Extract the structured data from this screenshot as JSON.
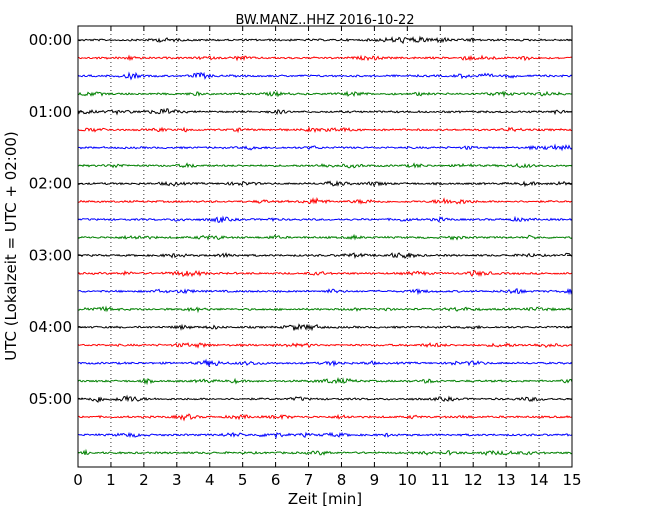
{
  "chart_data": {
    "type": "line",
    "title": "BW.MANZ..HHZ 2016-10-22",
    "xlabel": "Zeit  [min]",
    "ylabel": "UTC (Lokalzeit = UTC + 02:00)",
    "xlim": [
      0,
      15
    ],
    "x_ticks": [
      "0",
      "1",
      "2",
      "3",
      "4",
      "5",
      "6",
      "7",
      "8",
      "9",
      "10",
      "11",
      "12",
      "13",
      "14",
      "15"
    ],
    "y_ticks": [
      "00:00",
      "01:00",
      "02:00",
      "03:00",
      "04:00",
      "05:00"
    ],
    "grid": "vertical dotted lines at each minute",
    "trace_interval_minutes": 15,
    "trace_start_times": [
      "00:00",
      "00:15",
      "00:30",
      "00:45",
      "01:00",
      "01:15",
      "01:30",
      "01:45",
      "02:00",
      "02:15",
      "02:30",
      "02:45",
      "03:00",
      "03:15",
      "03:30",
      "03:45",
      "04:00",
      "04:15",
      "04:30",
      "04:45",
      "05:00",
      "05:15",
      "05:30",
      "05:45"
    ],
    "trace_colors": [
      "#000000",
      "#ff0000",
      "#0000ff",
      "#008000"
    ]
  }
}
